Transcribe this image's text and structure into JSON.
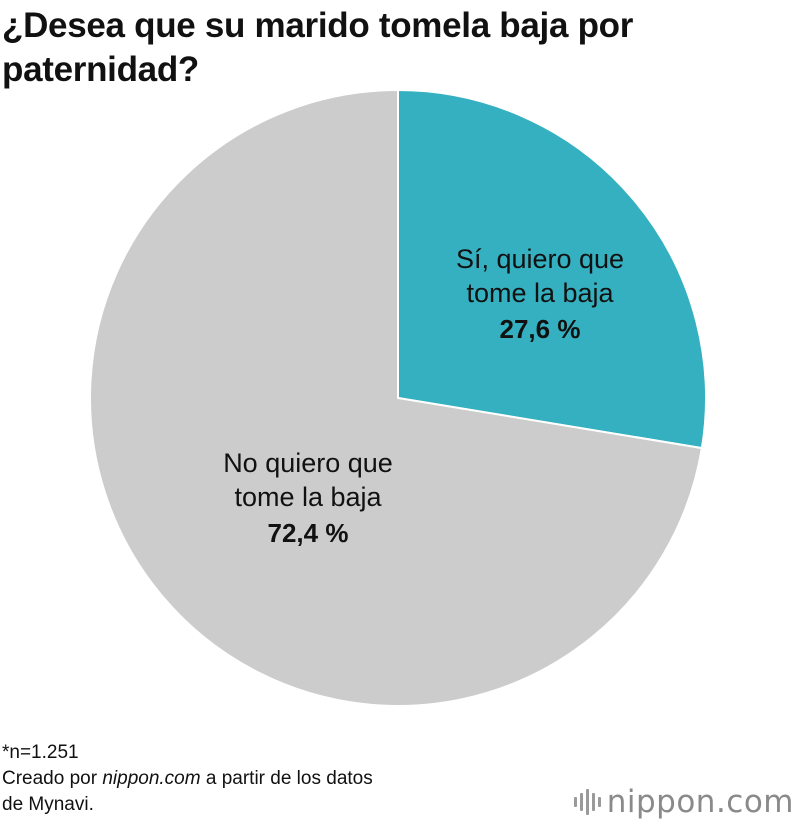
{
  "title": "¿Desea que su marido tomela baja por paternidad?",
  "chart_data": {
    "type": "pie",
    "title": "¿Desea que su marido tomela baja por paternidad?",
    "start_angle_deg": 0,
    "direction": "clockwise",
    "slices": [
      {
        "label_lines": [
          "Sí, quiero que",
          "tome la baja"
        ],
        "value": 27.6,
        "value_label": "27,6 %",
        "color": "#34b0c0"
      },
      {
        "label_lines": [
          "No quiero que",
          "tome la baja"
        ],
        "value": 72.4,
        "value_label": "72,4 %",
        "color": "#cccccc"
      }
    ]
  },
  "footnote": {
    "sample": "*n=1.251",
    "source_prefix": "Creado por ",
    "source_site": "nippon.com",
    "source_suffix": " a partir de los datos",
    "source_line2": "de Mynavi."
  },
  "brand": {
    "name": "nippon",
    "tld": ".com",
    "icon": "nippon-sound-bars-icon"
  }
}
